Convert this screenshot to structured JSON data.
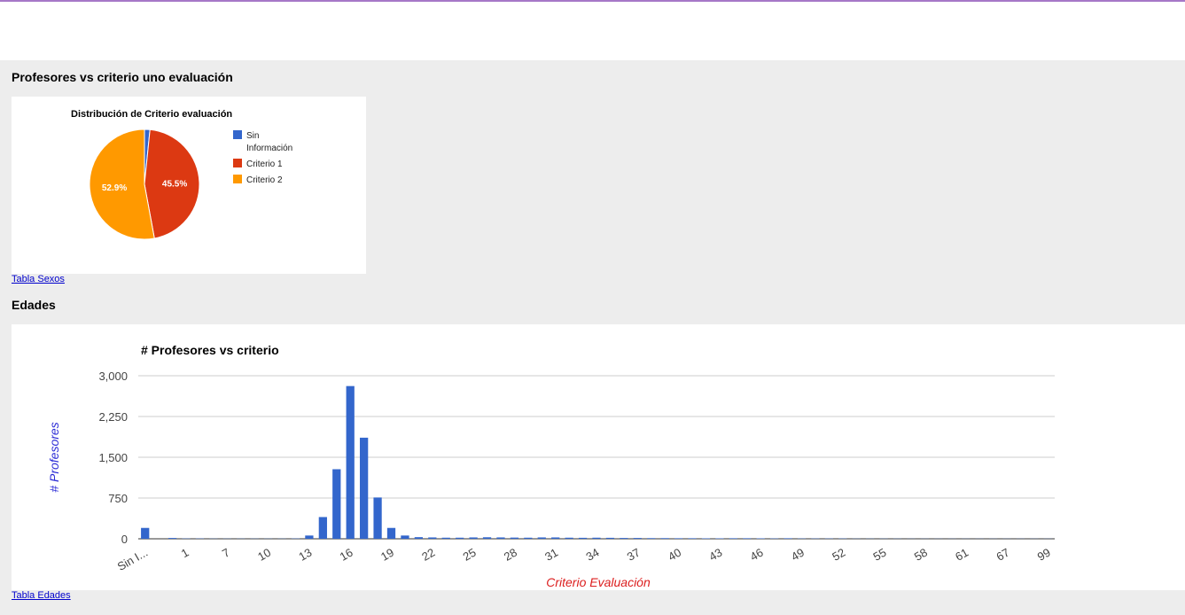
{
  "section1": {
    "title": "Profesores vs criterio uno evaluación",
    "link": "Tabla Sexos"
  },
  "section2": {
    "title": "Edades",
    "link": "Tabla Edades"
  },
  "pie_chart": {
    "type": "pie",
    "title": "Distribución de Criterio evaluación",
    "slices": [
      {
        "label": "Sin Información",
        "legend_lines": [
          "Sin",
          "Información"
        ],
        "value": 1.6,
        "color": "#3366cc",
        "show_label": false,
        "data_label": ""
      },
      {
        "label": "Criterio 1",
        "legend_lines": [
          "Criterio 1"
        ],
        "value": 45.5,
        "color": "#dc3912",
        "show_label": true,
        "data_label": "45.5%"
      },
      {
        "label": "Criterio 2",
        "legend_lines": [
          "Criterio 2"
        ],
        "value": 52.9,
        "color": "#ff9900",
        "show_label": true,
        "data_label": "52.9%"
      }
    ],
    "legend_position": "right"
  },
  "chart_data": {
    "type": "bar",
    "title": "# Profesores vs criterio",
    "xlabel": "Criterio Evaluación",
    "ylabel": "# Profesores",
    "ylim": [
      0,
      3000
    ],
    "yticks": [
      "0",
      "750",
      "1,500",
      "2,250",
      "3,000"
    ],
    "ytick_values": [
      0,
      750,
      1500,
      2250,
      3000
    ],
    "grid": true,
    "bar_color": "#3366cc",
    "xlabel_color": "#dc1e1e",
    "ylabel_color": "#2b2bd6",
    "x_tick_labels": [
      {
        "index": 0,
        "label": "Sin I..."
      },
      {
        "index": 3,
        "label": "1"
      },
      {
        "index": 6,
        "label": "7"
      },
      {
        "index": 9,
        "label": "10"
      },
      {
        "index": 12,
        "label": "13"
      },
      {
        "index": 15,
        "label": "16"
      },
      {
        "index": 18,
        "label": "19"
      },
      {
        "index": 21,
        "label": "22"
      },
      {
        "index": 24,
        "label": "25"
      },
      {
        "index": 27,
        "label": "28"
      },
      {
        "index": 30,
        "label": "31"
      },
      {
        "index": 33,
        "label": "34"
      },
      {
        "index": 36,
        "label": "37"
      },
      {
        "index": 39,
        "label": "40"
      },
      {
        "index": 42,
        "label": "43"
      },
      {
        "index": 45,
        "label": "46"
      },
      {
        "index": 48,
        "label": "49"
      },
      {
        "index": 51,
        "label": "52"
      },
      {
        "index": 54,
        "label": "55"
      },
      {
        "index": 57,
        "label": "58"
      },
      {
        "index": 60,
        "label": "61"
      },
      {
        "index": 63,
        "label": "67"
      },
      {
        "index": 66,
        "label": "99"
      }
    ],
    "values": [
      200,
      0,
      15,
      5,
      5,
      3,
      3,
      3,
      3,
      3,
      3,
      5,
      60,
      400,
      1280,
      2810,
      1860,
      760,
      200,
      60,
      30,
      25,
      20,
      20,
      25,
      28,
      25,
      22,
      20,
      25,
      25,
      20,
      18,
      20,
      18,
      15,
      15,
      12,
      12,
      10,
      10,
      8,
      8,
      10,
      10,
      8,
      6,
      10,
      5,
      5,
      5,
      5,
      3,
      3,
      3,
      3,
      2,
      2,
      2,
      2,
      2,
      2,
      2,
      2,
      2,
      2,
      2
    ]
  }
}
